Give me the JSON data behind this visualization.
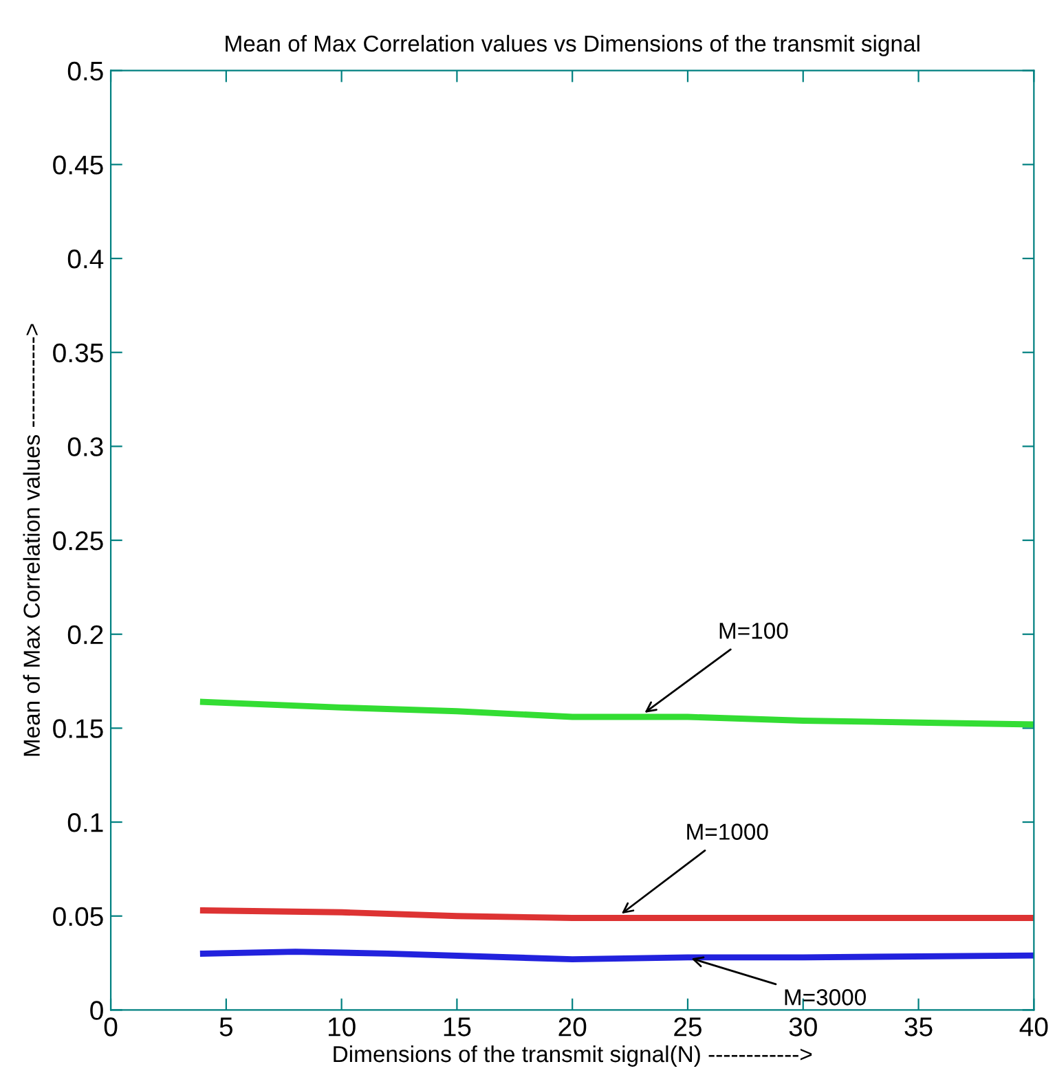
{
  "chart_data": {
    "type": "line",
    "title": "Mean of Max Correlation values vs Dimensions of the transmit signal",
    "xlabel": "Dimensions of the transmit signal(N) ------------>",
    "ylabel": "Mean of Max Correlation values ------------>",
    "series": [
      {
        "color": "#33dd33",
        "x": [
          4,
          10,
          15,
          20,
          25,
          30,
          35,
          40
        ],
        "values": [
          0.164,
          0.161,
          0.159,
          0.156,
          0.156,
          0.154,
          0.153,
          0.152
        ]
      },
      {
        "color": "#dd3333",
        "x": [
          4,
          10,
          15,
          20,
          30,
          40
        ],
        "values": [
          0.053,
          0.052,
          0.05,
          0.049,
          0.049,
          0.049
        ]
      },
      {
        "color": "#2222dd",
        "x": [
          4,
          8,
          12,
          20,
          25,
          30,
          40
        ],
        "values": [
          0.03,
          0.031,
          0.03,
          0.027,
          0.028,
          0.028,
          0.029
        ]
      }
    ],
    "annotations": [
      {
        "text": "M=100",
        "x": 23,
        "y": 0.157
      },
      {
        "text": "M=1000",
        "x": 22,
        "y": 0.05
      },
      {
        "text": "M=3000",
        "x": 25,
        "y": 0.028
      }
    ],
    "xlim": [
      0,
      40
    ],
    "xticks": [
      0,
      5,
      10,
      15,
      20,
      25,
      30,
      35,
      40
    ],
    "ylim": [
      0,
      0.5
    ],
    "yticks": [
      0,
      0.05,
      0.1,
      0.15,
      0.2,
      0.25,
      0.3,
      0.35,
      0.4,
      0.45,
      0.5
    ],
    "grid": false,
    "legend": false
  }
}
